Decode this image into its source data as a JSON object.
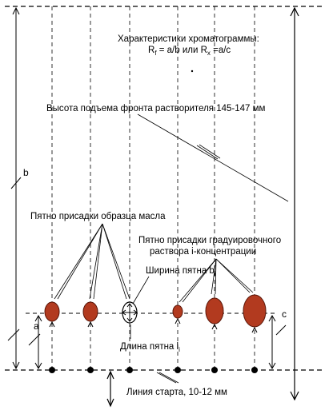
{
  "title": "Характеристики хроматограммы:",
  "formula": {
    "rf_main": "R",
    "rf_sub": "f",
    "rf_rest": " = a/b или R",
    "rx_sub": "x",
    "rx_rest": " =a/c"
  },
  "front_height_label": "Высота подъема фронта растворителя 145-147 мм",
  "oil_sample_label": "Пятно присадки образца масла",
  "calibration_label_line1": "Пятно присадки градуировочного",
  "calibration_label_line2": "раствора i-концентрации",
  "spot_width_main": "Ширина пятна b",
  "spot_width_sub": "i",
  "spot_length_main": "Длина пятна l",
  "spot_length_sub": "i",
  "start_line_label": "Линия старта, 10-12 мм",
  "dim_b": "b",
  "dim_a": "a",
  "dim_c": "c",
  "colors": {
    "spot_fill": "#b23a1f",
    "spot_stroke": "#5a1608",
    "line": "#000000"
  }
}
